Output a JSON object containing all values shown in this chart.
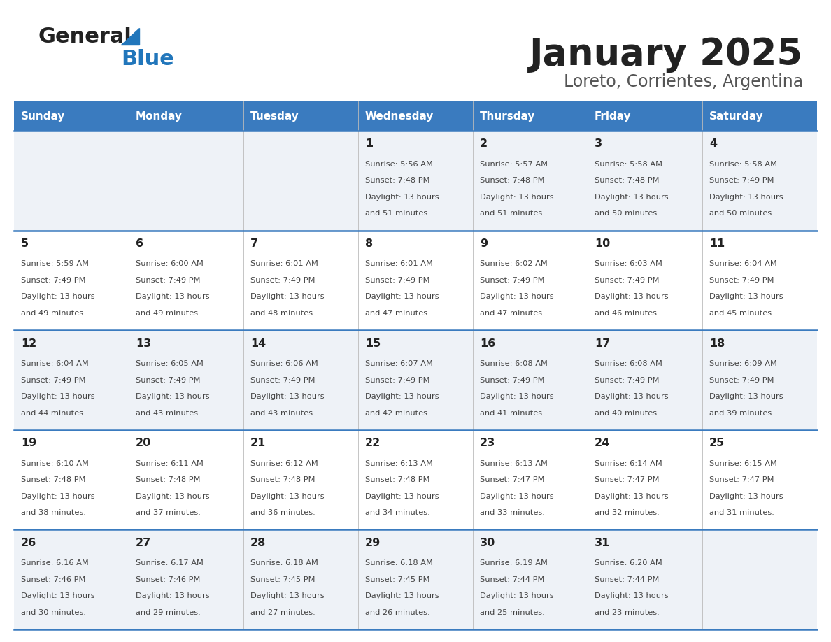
{
  "title": "January 2025",
  "subtitle": "Loreto, Corrientes, Argentina",
  "header_bg_color": "#3a7bbf",
  "header_text_color": "#ffffff",
  "day_names": [
    "Sunday",
    "Monday",
    "Tuesday",
    "Wednesday",
    "Thursday",
    "Friday",
    "Saturday"
  ],
  "row_bg_colors": [
    "#eef2f7",
    "#ffffff",
    "#eef2f7",
    "#ffffff",
    "#eef2f7"
  ],
  "cell_text_color": "#444444",
  "day_num_color": "#222222",
  "grid_line_color": "#3a7bbf",
  "title_color": "#222222",
  "subtitle_color": "#555555",
  "logo_general_color": "#222222",
  "logo_blue_color": "#2176bb",
  "calendar_data": [
    [
      null,
      null,
      null,
      {
        "day": 1,
        "sunrise": "5:56 AM",
        "sunset": "7:48 PM",
        "daylight": "13 hours and 51 minutes"
      },
      {
        "day": 2,
        "sunrise": "5:57 AM",
        "sunset": "7:48 PM",
        "daylight": "13 hours and 51 minutes"
      },
      {
        "day": 3,
        "sunrise": "5:58 AM",
        "sunset": "7:48 PM",
        "daylight": "13 hours and 50 minutes"
      },
      {
        "day": 4,
        "sunrise": "5:58 AM",
        "sunset": "7:49 PM",
        "daylight": "13 hours and 50 minutes"
      }
    ],
    [
      {
        "day": 5,
        "sunrise": "5:59 AM",
        "sunset": "7:49 PM",
        "daylight": "13 hours and 49 minutes"
      },
      {
        "day": 6,
        "sunrise": "6:00 AM",
        "sunset": "7:49 PM",
        "daylight": "13 hours and 49 minutes"
      },
      {
        "day": 7,
        "sunrise": "6:01 AM",
        "sunset": "7:49 PM",
        "daylight": "13 hours and 48 minutes"
      },
      {
        "day": 8,
        "sunrise": "6:01 AM",
        "sunset": "7:49 PM",
        "daylight": "13 hours and 47 minutes"
      },
      {
        "day": 9,
        "sunrise": "6:02 AM",
        "sunset": "7:49 PM",
        "daylight": "13 hours and 47 minutes"
      },
      {
        "day": 10,
        "sunrise": "6:03 AM",
        "sunset": "7:49 PM",
        "daylight": "13 hours and 46 minutes"
      },
      {
        "day": 11,
        "sunrise": "6:04 AM",
        "sunset": "7:49 PM",
        "daylight": "13 hours and 45 minutes"
      }
    ],
    [
      {
        "day": 12,
        "sunrise": "6:04 AM",
        "sunset": "7:49 PM",
        "daylight": "13 hours and 44 minutes"
      },
      {
        "day": 13,
        "sunrise": "6:05 AM",
        "sunset": "7:49 PM",
        "daylight": "13 hours and 43 minutes"
      },
      {
        "day": 14,
        "sunrise": "6:06 AM",
        "sunset": "7:49 PM",
        "daylight": "13 hours and 43 minutes"
      },
      {
        "day": 15,
        "sunrise": "6:07 AM",
        "sunset": "7:49 PM",
        "daylight": "13 hours and 42 minutes"
      },
      {
        "day": 16,
        "sunrise": "6:08 AM",
        "sunset": "7:49 PM",
        "daylight": "13 hours and 41 minutes"
      },
      {
        "day": 17,
        "sunrise": "6:08 AM",
        "sunset": "7:49 PM",
        "daylight": "13 hours and 40 minutes"
      },
      {
        "day": 18,
        "sunrise": "6:09 AM",
        "sunset": "7:49 PM",
        "daylight": "13 hours and 39 minutes"
      }
    ],
    [
      {
        "day": 19,
        "sunrise": "6:10 AM",
        "sunset": "7:48 PM",
        "daylight": "13 hours and 38 minutes"
      },
      {
        "day": 20,
        "sunrise": "6:11 AM",
        "sunset": "7:48 PM",
        "daylight": "13 hours and 37 minutes"
      },
      {
        "day": 21,
        "sunrise": "6:12 AM",
        "sunset": "7:48 PM",
        "daylight": "13 hours and 36 minutes"
      },
      {
        "day": 22,
        "sunrise": "6:13 AM",
        "sunset": "7:48 PM",
        "daylight": "13 hours and 34 minutes"
      },
      {
        "day": 23,
        "sunrise": "6:13 AM",
        "sunset": "7:47 PM",
        "daylight": "13 hours and 33 minutes"
      },
      {
        "day": 24,
        "sunrise": "6:14 AM",
        "sunset": "7:47 PM",
        "daylight": "13 hours and 32 minutes"
      },
      {
        "day": 25,
        "sunrise": "6:15 AM",
        "sunset": "7:47 PM",
        "daylight": "13 hours and 31 minutes"
      }
    ],
    [
      {
        "day": 26,
        "sunrise": "6:16 AM",
        "sunset": "7:46 PM",
        "daylight": "13 hours and 30 minutes"
      },
      {
        "day": 27,
        "sunrise": "6:17 AM",
        "sunset": "7:46 PM",
        "daylight": "13 hours and 29 minutes"
      },
      {
        "day": 28,
        "sunrise": "6:18 AM",
        "sunset": "7:45 PM",
        "daylight": "13 hours and 27 minutes"
      },
      {
        "day": 29,
        "sunrise": "6:18 AM",
        "sunset": "7:45 PM",
        "daylight": "13 hours and 26 minutes"
      },
      {
        "day": 30,
        "sunrise": "6:19 AM",
        "sunset": "7:44 PM",
        "daylight": "13 hours and 25 minutes"
      },
      {
        "day": 31,
        "sunrise": "6:20 AM",
        "sunset": "7:44 PM",
        "daylight": "13 hours and 23 minutes"
      },
      null
    ]
  ]
}
